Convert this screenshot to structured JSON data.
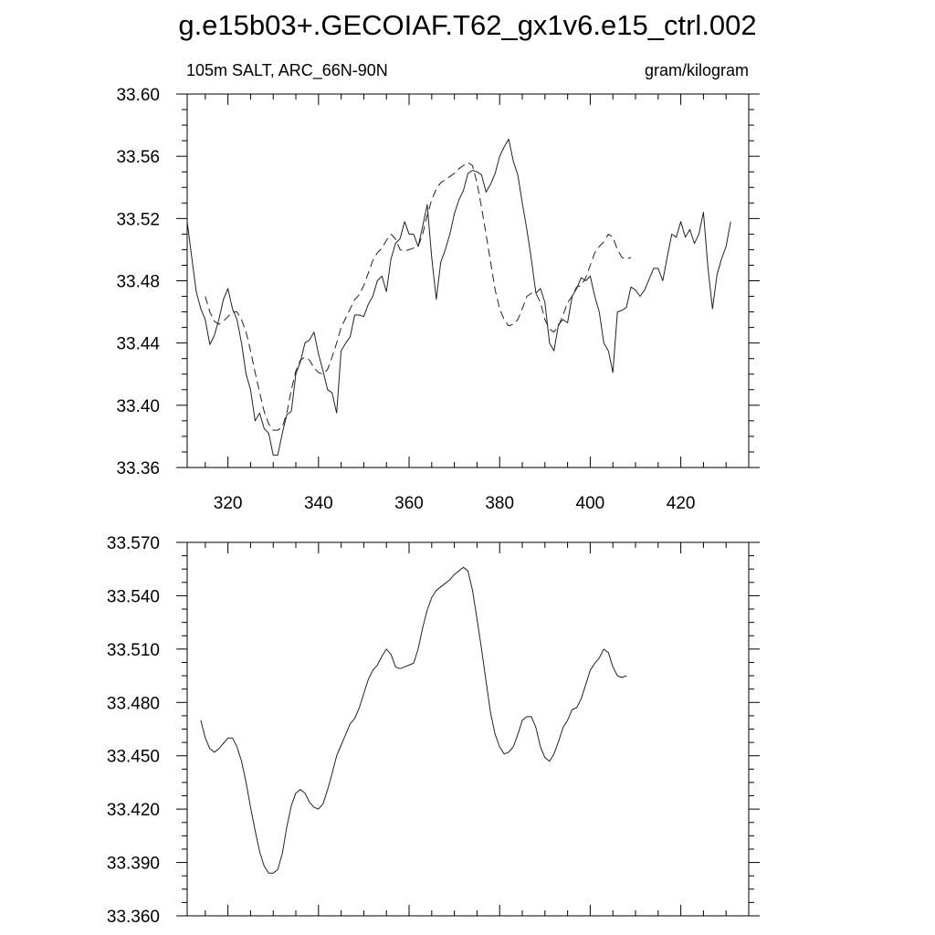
{
  "title": "g.e15b03+.GECOIAF.T62_gx1v6.e15_ctrl.002",
  "chart_data": [
    {
      "type": "line",
      "left_label": "105m SALT, ARC_66N-90N",
      "right_label": "gram/kilogram",
      "xlim": [
        311,
        435
      ],
      "ylim": [
        33.36,
        33.6
      ],
      "x_ticks": [
        320,
        340,
        360,
        380,
        400,
        420
      ],
      "y_ticks": [
        "33.36",
        "33.40",
        "33.44",
        "33.48",
        "33.52",
        "33.56",
        "33.60"
      ],
      "x_start": 311,
      "series": [
        {
          "style": "solid",
          "values": [
            33.518,
            33.495,
            33.473,
            33.462,
            33.455,
            33.439,
            33.445,
            33.455,
            33.468,
            33.475,
            33.462,
            33.455,
            33.44,
            33.42,
            33.41,
            33.39,
            33.395,
            33.385,
            33.382,
            33.368,
            33.368,
            33.382,
            33.394,
            33.396,
            33.42,
            33.428,
            33.44,
            33.442,
            33.447,
            33.433,
            33.422,
            33.41,
            33.408,
            33.395,
            33.435,
            33.44,
            33.444,
            33.458,
            33.458,
            33.457,
            33.465,
            33.47,
            33.48,
            33.483,
            33.473,
            33.494,
            33.504,
            33.507,
            33.518,
            33.51,
            33.51,
            33.502,
            33.515,
            33.529,
            33.495,
            33.468,
            33.492,
            33.5,
            33.51,
            33.523,
            33.532,
            33.538,
            33.549,
            33.551,
            33.55,
            33.548,
            33.537,
            33.542,
            33.549,
            33.56,
            33.566,
            33.571,
            33.557,
            33.548,
            33.53,
            33.513,
            33.494,
            33.472,
            33.475,
            33.466,
            33.44,
            33.435,
            33.452,
            33.455,
            33.453,
            33.47,
            33.475,
            33.482,
            33.48,
            33.483,
            33.47,
            33.46,
            33.44,
            33.435,
            33.421,
            33.46,
            33.461,
            33.463,
            33.476,
            33.474,
            33.47,
            33.474,
            33.481,
            33.488,
            33.488,
            33.48,
            33.495,
            33.51,
            33.508,
            33.518,
            33.508,
            33.513,
            33.504,
            33.51,
            33.524,
            33.488,
            33.462,
            33.484,
            33.494,
            33.502,
            33.518
          ]
        },
        {
          "style": "dashed",
          "x_start": 315,
          "values": [
            33.47,
            33.46,
            33.454,
            33.452,
            33.454,
            33.457,
            33.46,
            33.46,
            33.455,
            33.447,
            33.435,
            33.421,
            33.408,
            33.396,
            33.388,
            33.384,
            33.384,
            33.386,
            33.395,
            33.41,
            33.422,
            33.429,
            33.431,
            33.429,
            33.424,
            33.421,
            33.42,
            33.423,
            33.431,
            33.44,
            33.45,
            33.456,
            33.462,
            33.468,
            33.471,
            33.477,
            33.485,
            33.493,
            33.498,
            33.501,
            33.506,
            33.51,
            33.507,
            33.5,
            33.499,
            33.5,
            33.501,
            33.502,
            33.51,
            33.522,
            33.532,
            33.539,
            33.543,
            33.545,
            33.547,
            33.549,
            33.552,
            33.554,
            33.556,
            33.554,
            33.543,
            33.527,
            33.51,
            33.492,
            33.474,
            33.462,
            33.455,
            33.451,
            33.452,
            33.455,
            33.462,
            33.47,
            33.472,
            33.472,
            33.466,
            33.455,
            33.449,
            33.447,
            33.451,
            33.458,
            33.466,
            33.47,
            33.476,
            33.477,
            33.482,
            33.49,
            33.498,
            33.502,
            33.505,
            33.51,
            33.508,
            33.5,
            33.495,
            33.494,
            33.495
          ]
        }
      ]
    },
    {
      "type": "line",
      "xlim": [
        311,
        435
      ],
      "ylim": [
        33.36,
        33.57
      ],
      "x_ticks": [
        320,
        340,
        360,
        380,
        400,
        420
      ],
      "y_ticks": [
        "33.360",
        "33.390",
        "33.420",
        "33.450",
        "33.480",
        "33.510",
        "33.540",
        "33.570"
      ],
      "series": [
        {
          "style": "solid",
          "x_start": 314,
          "values": [
            33.47,
            33.46,
            33.454,
            33.452,
            33.454,
            33.457,
            33.46,
            33.46,
            33.455,
            33.447,
            33.435,
            33.421,
            33.408,
            33.396,
            33.388,
            33.384,
            33.384,
            33.386,
            33.395,
            33.41,
            33.422,
            33.429,
            33.431,
            33.429,
            33.424,
            33.421,
            33.42,
            33.423,
            33.431,
            33.44,
            33.45,
            33.456,
            33.462,
            33.468,
            33.471,
            33.477,
            33.485,
            33.493,
            33.498,
            33.501,
            33.506,
            33.51,
            33.507,
            33.5,
            33.499,
            33.5,
            33.501,
            33.502,
            33.51,
            33.522,
            33.532,
            33.539,
            33.543,
            33.545,
            33.547,
            33.549,
            33.552,
            33.554,
            33.556,
            33.554,
            33.543,
            33.527,
            33.51,
            33.492,
            33.474,
            33.462,
            33.455,
            33.451,
            33.452,
            33.455,
            33.462,
            33.47,
            33.472,
            33.472,
            33.466,
            33.455,
            33.449,
            33.447,
            33.451,
            33.458,
            33.466,
            33.47,
            33.476,
            33.477,
            33.482,
            33.49,
            33.498,
            33.502,
            33.505,
            33.51,
            33.508,
            33.5,
            33.495,
            33.494,
            33.495
          ]
        }
      ]
    }
  ]
}
